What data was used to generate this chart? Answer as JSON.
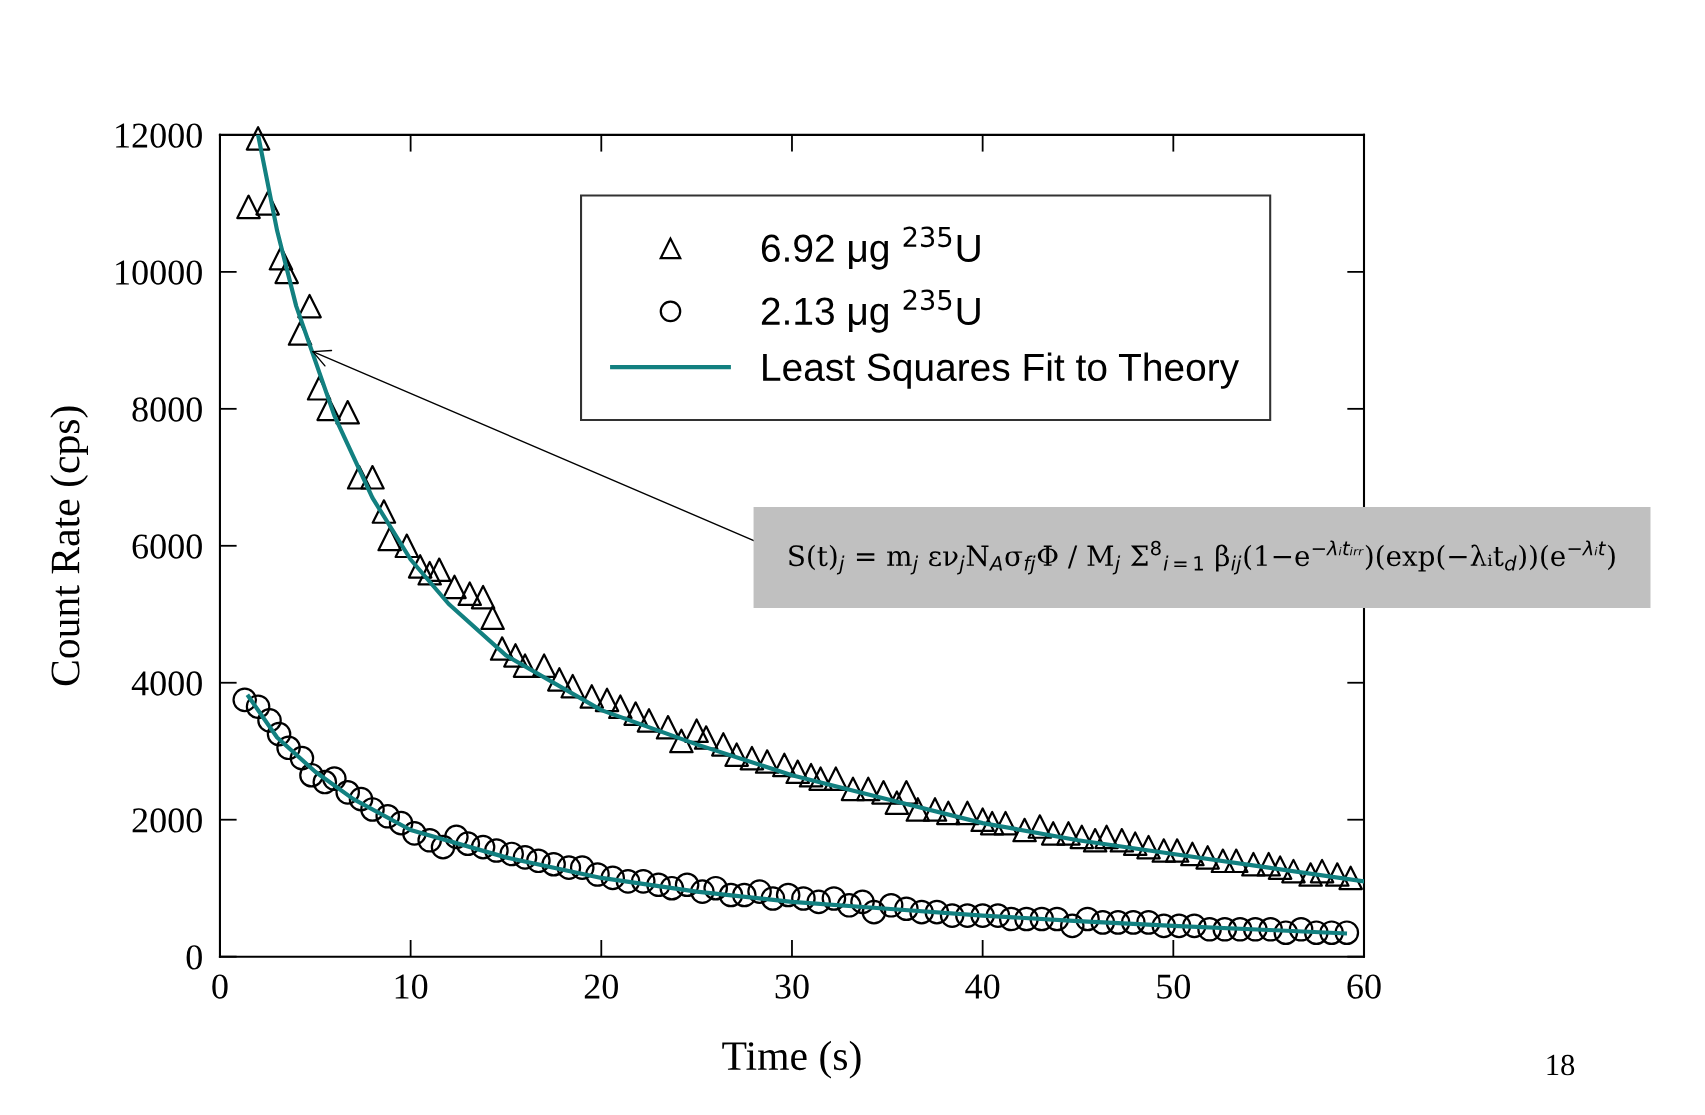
{
  "chart_data": {
    "type": "scatter",
    "xlabel": "Time (s)",
    "ylabel": "Count Rate (cps)",
    "xlim": [
      0,
      60
    ],
    "ylim": [
      0,
      12000
    ],
    "xticks": [
      0,
      10,
      20,
      30,
      40,
      50,
      60
    ],
    "yticks": [
      0,
      2000,
      4000,
      6000,
      8000,
      10000,
      12000
    ],
    "grid": false,
    "legend": "top right",
    "series": [
      {
        "name": "6.92 μg $^{235}$U",
        "color": "#000000",
        "marker": "triangle",
        "x": [
          2,
          1.5,
          2.5,
          3.2,
          3.5,
          4.7,
          4.2,
          5.2,
          5.7,
          6.7,
          7.3,
          8,
          8.6,
          8.9,
          9.8,
          10.5,
          11,
          11.5,
          12.3,
          13.1,
          13.8,
          14.3,
          14.8,
          15.5,
          16,
          17,
          17.8,
          18.5,
          19.5,
          20.3,
          21,
          21.8,
          22.5,
          23.5,
          24.2,
          25,
          25.5,
          26.4,
          27.1,
          27.9,
          28.7,
          29.6,
          30.3,
          31,
          31.5,
          32.3,
          33.2,
          34,
          34.8,
          35.5,
          36,
          36.6,
          37.5,
          38.2,
          39.2,
          40,
          40.5,
          41.2,
          42.2,
          43,
          43.7,
          44.5,
          45.2,
          45.9,
          46.5,
          47.3,
          48,
          48.7,
          49.5,
          50.2,
          51,
          51.8,
          52.6,
          53.3,
          54.2,
          55,
          55.6,
          56.3,
          57.2,
          57.8,
          58.6,
          59.3
        ],
        "values": [
          11950,
          10950,
          11000,
          10200,
          10000,
          9500,
          9100,
          8300,
          8000,
          7950,
          7000,
          7000,
          6500,
          6100,
          6000,
          5700,
          5600,
          5650,
          5400,
          5300,
          5250,
          4950,
          4500,
          4400,
          4250,
          4250,
          4050,
          3950,
          3800,
          3750,
          3650,
          3550,
          3450,
          3350,
          3150,
          3300,
          3200,
          3100,
          2950,
          2900,
          2850,
          2800,
          2700,
          2650,
          2600,
          2600,
          2450,
          2450,
          2400,
          2250,
          2400,
          2150,
          2150,
          2100,
          2100,
          2000,
          1950,
          1950,
          1850,
          1900,
          1800,
          1800,
          1750,
          1700,
          1750,
          1700,
          1650,
          1600,
          1550,
          1550,
          1500,
          1450,
          1400,
          1400,
          1350,
          1350,
          1300,
          1250,
          1200,
          1250,
          1200,
          1150
        ]
      },
      {
        "name": "2.13 μg $^{235}$U",
        "color": "#000000",
        "marker": "circle",
        "x": [
          1.3,
          2,
          2.6,
          3.1,
          3.6,
          4.3,
          4.8,
          5.5,
          6,
          6.7,
          7.4,
          8,
          8.8,
          9.5,
          10.2,
          11,
          11.7,
          12.4,
          13,
          13.8,
          14.5,
          15.3,
          16,
          16.7,
          17.5,
          18.3,
          19,
          19.8,
          20.6,
          21.4,
          22.2,
          23,
          23.7,
          24.5,
          25.3,
          26,
          26.8,
          27.5,
          28.3,
          29,
          29.8,
          30.6,
          31.4,
          32.2,
          33,
          33.7,
          34.3,
          35.2,
          36,
          36.8,
          37.6,
          38.4,
          39.2,
          40,
          40.8,
          41.5,
          42.3,
          43.1,
          43.9,
          44.7,
          45.5,
          46.3,
          47.1,
          47.9,
          48.7,
          49.5,
          50.3,
          51.1,
          51.9,
          52.7,
          53.5,
          54.3,
          55.1,
          55.9,
          56.7,
          57.5,
          58.3,
          59.1
        ],
        "values": [
          3750,
          3650,
          3450,
          3250,
          3050,
          2900,
          2650,
          2550,
          2600,
          2400,
          2300,
          2150,
          2050,
          1950,
          1800,
          1700,
          1600,
          1750,
          1650,
          1600,
          1550,
          1500,
          1450,
          1400,
          1350,
          1300,
          1300,
          1200,
          1150,
          1100,
          1100,
          1050,
          1000,
          1050,
          950,
          1000,
          900,
          900,
          950,
          850,
          900,
          850,
          800,
          850,
          750,
          800,
          650,
          750,
          700,
          650,
          650,
          600,
          600,
          600,
          600,
          550,
          550,
          550,
          550,
          450,
          550,
          500,
          500,
          500,
          500,
          450,
          450,
          450,
          400,
          400,
          400,
          400,
          400,
          350,
          400,
          350,
          350,
          350
        ]
      },
      {
        "name": "Least Squares Fit to Theory",
        "type": "line",
        "color": "#128080",
        "line_style": "solid",
        "marker": "none",
        "x": [
          2,
          3,
          4,
          5,
          6,
          8,
          10,
          12,
          15,
          20,
          25,
          30,
          35,
          40,
          45,
          50,
          55,
          60
        ],
        "values": [
          12000,
          10600,
          9500,
          8700,
          7900,
          6700,
          5800,
          5150,
          4400,
          3600,
          3100,
          2650,
          2300,
          1950,
          1700,
          1500,
          1300,
          1100
        ]
      },
      {
        "type": "line",
        "color": "#128080",
        "line_style": "solid",
        "marker": "none",
        "x": [
          1.5,
          3,
          5,
          7,
          10,
          15,
          20,
          25,
          30,
          35,
          40,
          45,
          50,
          55,
          59
        ],
        "values": [
          3800,
          3200,
          2700,
          2300,
          1850,
          1450,
          1150,
          950,
          800,
          700,
          600,
          520,
          450,
          390,
          340
        ]
      }
    ],
    "annotations": [
      {
        "text": "S(t)$_{j}$ = m$_{j}$ εν$_{j}$N$_{A}$σ$_{fj}$Φ / M$_{j}$ Σ$^{8}$$_{i=1}$ β$_{ij}$(1−e$^{−λᵢtᵢᵣᵣ}$)(exp(−λᵢt$_{d}$))(e$^{−λᵢt}$)"
      },
      "18"
    ]
  }
}
